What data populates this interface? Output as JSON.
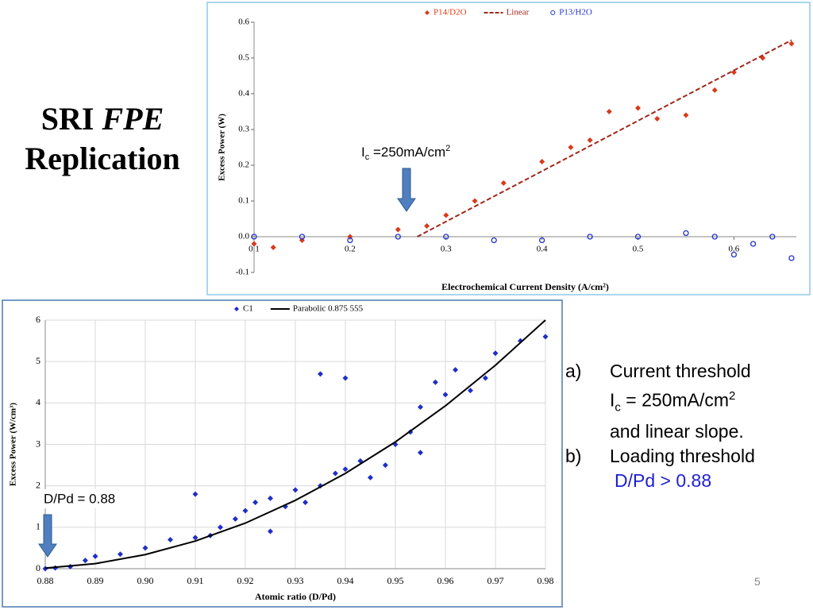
{
  "slide": {
    "title_a": "SRI",
    "title_b": "FPE",
    "title_c": "Replication",
    "page": "5",
    "notes": [
      {
        "marker": "a)",
        "line1": "Current threshold",
        "i": "I",
        "sub": "c",
        "eq": " = 250mA/cm",
        "sup": "2",
        "line3": "and linear slope."
      },
      {
        "marker": "b)",
        "line1": "Loading threshold",
        "line2": "D/Pd > 0.88"
      }
    ]
  },
  "chart_data": [
    {
      "type": "scatter",
      "ylabel": "Excess Power (W)",
      "xlabel": "Electrochemical Current Density (A/cm²)",
      "annotation": {
        "i": "I",
        "sub": "c",
        "rest": " =250mA/cm",
        "sup": "2"
      },
      "xlim": [
        0.1,
        0.665
      ],
      "xticks": [
        0.1,
        0.2,
        0.3,
        0.4,
        0.5,
        0.6
      ],
      "ylim": [
        -0.1,
        0.6
      ],
      "yticks": [
        -0.1,
        {
          "value": 0,
          "label": "0.0"
        },
        0.1,
        0.2,
        0.3,
        0.4,
        0.5,
        0.6
      ],
      "grid": false,
      "axis_cross": "zero",
      "legend": "top",
      "series": [
        {
          "name": "P14/D2O",
          "color": "#d93a1a",
          "kind": "points",
          "marker": "diamond",
          "x": [
            0.1,
            0.12,
            0.15,
            0.2,
            0.25,
            0.28,
            0.3,
            0.33,
            0.36,
            0.4,
            0.43,
            0.45,
            0.47,
            0.5,
            0.52,
            0.55,
            0.58,
            0.6,
            0.63,
            0.66
          ],
          "values": [
            -0.02,
            -0.03,
            -0.01,
            0.0,
            0.02,
            0.03,
            0.06,
            0.1,
            0.15,
            0.21,
            0.25,
            0.27,
            0.35,
            0.36,
            0.33,
            0.34,
            0.41,
            0.46,
            0.5,
            0.54
          ]
        },
        {
          "name": "Linear",
          "color": "#a0281a",
          "kind": "dashed",
          "x": [
            0.27,
            0.66
          ],
          "values": [
            0,
            0.55
          ]
        },
        {
          "name": "P13/H2O",
          "color": "#2233cc",
          "kind": "points",
          "marker": "circle-open",
          "x": [
            0.1,
            0.15,
            0.2,
            0.25,
            0.3,
            0.35,
            0.4,
            0.45,
            0.5,
            0.55,
            0.58,
            0.6,
            0.62,
            0.64,
            0.66
          ],
          "values": [
            0.0,
            0.0,
            -0.01,
            0.0,
            0.0,
            -0.01,
            -0.01,
            0.0,
            0.0,
            0.01,
            0.0,
            -0.05,
            -0.02,
            0.0,
            -0.06
          ]
        }
      ]
    },
    {
      "type": "scatter",
      "ylabel": "Excess Power (W/cm³)",
      "xlabel": "Atomic ratio (D/Pd)",
      "annotation": {
        "text": "D/Pd = 0.88"
      },
      "xlim": [
        0.88,
        0.98
      ],
      "xticks": [
        0.88,
        0.89,
        {
          "value": 0.9,
          "label": "0.90"
        },
        0.91,
        0.92,
        0.93,
        0.94,
        0.95,
        0.96,
        0.97,
        0.98
      ],
      "ylim": [
        0,
        6
      ],
      "yticks": [
        0,
        1,
        2,
        3,
        4,
        5,
        6
      ],
      "grid": true,
      "axis_cross": "bottom",
      "legend": "top",
      "series": [
        {
          "name": "C1",
          "color": "#1f2ec8",
          "kind": "points",
          "marker": "diamond",
          "x": [
            0.88,
            0.882,
            0.885,
            0.888,
            0.89,
            0.895,
            0.9,
            0.905,
            0.91,
            0.913,
            0.915,
            0.918,
            0.92,
            0.922,
            0.925,
            0.928,
            0.93,
            0.932,
            0.935,
            0.938,
            0.94,
            0.943,
            0.945,
            0.948,
            0.95,
            0.953,
            0.955,
            0.958,
            0.96,
            0.962,
            0.965,
            0.968,
            0.97,
            0.975,
            0.98,
            0.91,
            0.935,
            0.94,
            0.925,
            0.955
          ],
          "values": [
            0,
            0.02,
            0.05,
            0.2,
            0.3,
            0.35,
            0.5,
            0.7,
            0.75,
            0.8,
            1.0,
            1.2,
            1.4,
            1.6,
            1.7,
            1.5,
            1.9,
            1.6,
            2.0,
            2.3,
            2.4,
            2.6,
            2.2,
            2.5,
            3.0,
            3.3,
            3.9,
            4.5,
            4.2,
            4.8,
            4.3,
            4.6,
            5.2,
            5.5,
            5.6,
            1.8,
            4.7,
            4.6,
            0.9,
            2.8
          ]
        },
        {
          "name": "Parabolic 0.875 555",
          "color": "#000000",
          "kind": "line",
          "x": [
            0.88,
            0.89,
            0.9,
            0.91,
            0.92,
            0.93,
            0.94,
            0.95,
            0.96,
            0.97,
            0.98
          ],
          "values": [
            0.014,
            0.122,
            0.34,
            0.667,
            1.1,
            1.65,
            2.3,
            3.06,
            3.93,
            4.91,
            6.0
          ]
        }
      ]
    }
  ]
}
